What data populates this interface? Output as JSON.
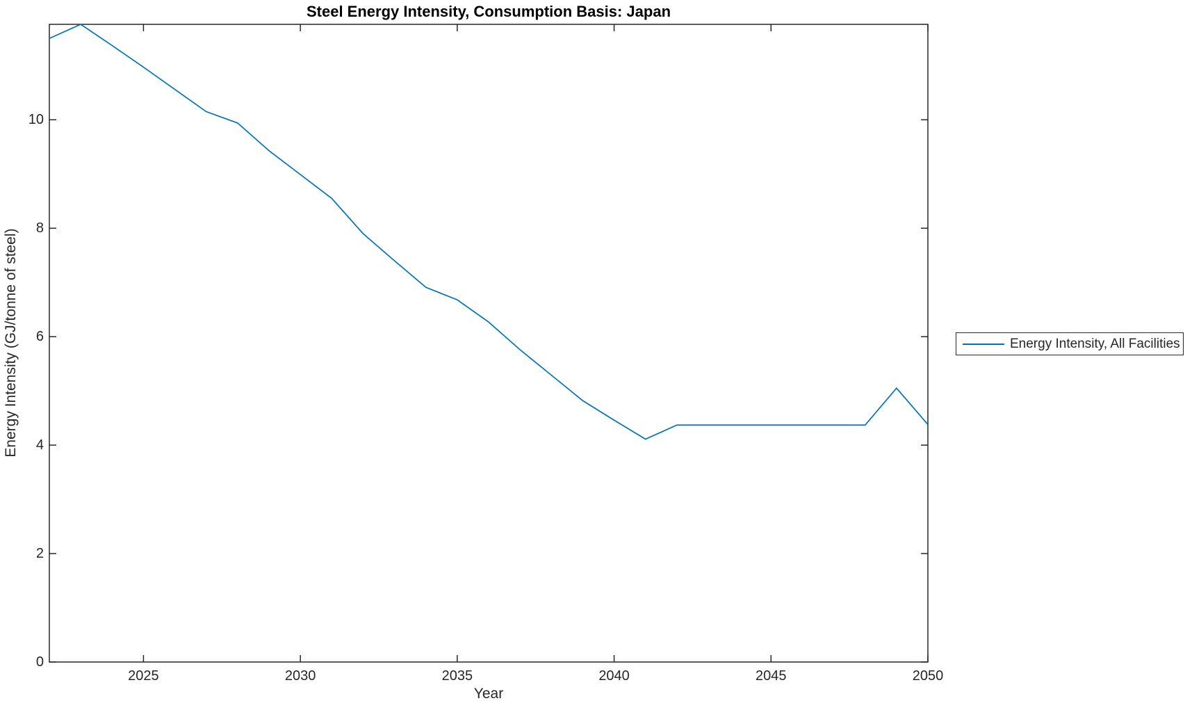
{
  "chart": {
    "title": "Steel Energy Intensity, Consumption Basis: Japan",
    "xlabel": "Year",
    "ylabel": "Energy Intensity (GJ/tonne of steel)",
    "legend": {
      "label": "Energy Intensity, All Facilities"
    },
    "colors": {
      "line": "#0072BD",
      "axis": "#262626",
      "text": "#262626",
      "background": "#ffffff"
    }
  },
  "chart_data": {
    "type": "line",
    "title": "Steel Energy Intensity, Consumption Basis: Japan",
    "xlabel": "Year",
    "ylabel": "Energy Intensity (GJ/tonne of steel)",
    "xlim": [
      2022,
      2050
    ],
    "ylim": [
      0,
      11.76
    ],
    "xticks": [
      2025,
      2030,
      2035,
      2040,
      2045,
      2050
    ],
    "yticks": [
      0,
      2,
      4,
      6,
      8,
      10
    ],
    "grid": false,
    "legend_position": "eastoutside",
    "series": [
      {
        "name": "Energy Intensity, All Facilities",
        "color": "#0072BD",
        "x": [
          2022,
          2023,
          2024,
          2025,
          2026,
          2027,
          2028,
          2029,
          2030,
          2031,
          2032,
          2033,
          2034,
          2035,
          2036,
          2037,
          2038,
          2039,
          2040,
          2041,
          2042,
          2043,
          2044,
          2045,
          2046,
          2047,
          2048,
          2049,
          2050
        ],
        "y": [
          11.5,
          11.76,
          11.37,
          10.97,
          10.56,
          10.15,
          9.94,
          9.43,
          8.99,
          8.55,
          7.9,
          7.4,
          6.91,
          6.68,
          6.27,
          5.76,
          5.29,
          4.82,
          4.46,
          4.11,
          4.37,
          4.37,
          4.37,
          4.37,
          4.37,
          4.37,
          4.37,
          5.05,
          4.38
        ]
      }
    ]
  }
}
